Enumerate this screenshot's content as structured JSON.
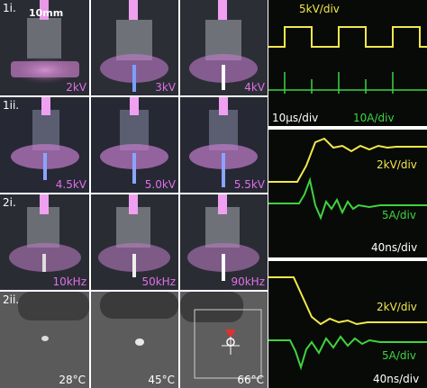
{
  "rows": [
    {
      "label": "1i.",
      "values": [
        "2kV",
        "3kV",
        "4kV"
      ],
      "scale": "10mm"
    },
    {
      "label": "1ii.",
      "values": [
        "4.5kV",
        "5.0kV",
        "5.5kV"
      ]
    },
    {
      "label": "2i.",
      "values": [
        "10kHz",
        "50kHz",
        "90kHz"
      ]
    },
    {
      "label": "2ii.",
      "values": [
        "28°C",
        "45°C",
        "66°C"
      ]
    }
  ],
  "scopes": [
    {
      "ch1": "5kV/div",
      "time": "10µs/div",
      "ch2": "10A/div"
    },
    {
      "ch1": "2kV/div",
      "ch2": "5A/div",
      "time": "40ns/div"
    },
    {
      "ch1": "2kV/div",
      "ch2": "5A/div",
      "time": "40ns/div"
    }
  ],
  "colors": {
    "voltage_trace": "#f2e84a",
    "current_trace": "#3ed43e",
    "value_label": "#e070e8"
  }
}
